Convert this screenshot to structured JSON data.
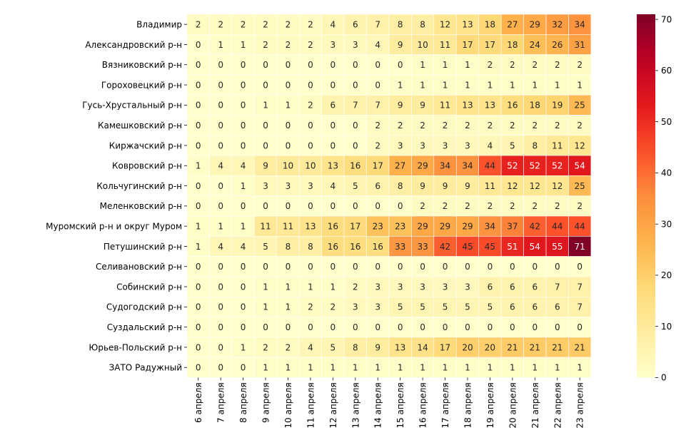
{
  "chart_data": {
    "type": "heatmap",
    "title": "",
    "xlabel": "",
    "ylabel": "",
    "x": [
      "6 апреля",
      "7 апреля",
      "8 апреля",
      "9 апреля",
      "10 апреля",
      "11 апреля",
      "12 апреля",
      "13 апреля",
      "14 апреля",
      "15 апреля",
      "16 апреля",
      "17 апреля",
      "18 апреля",
      "19 апреля",
      "20 апреля",
      "21 апреля",
      "22 апреля",
      "23 апреля"
    ],
    "y": [
      "Владимир",
      "Александровский р-н",
      "Вязниковский р-н",
      "Гороховецкий р-н",
      "Гусь-Хрустальный р-н",
      "Камешковский р-н",
      "Киржачский р-н",
      "Ковровский р-н",
      "Кольчугинский р-н",
      "Меленковский р-н",
      "Муромский р-н и округ Муром",
      "Петушинский р-н",
      "Селивановский р-н",
      "Собинский р-н",
      "Судогодский р-н",
      "Суздальский р-н",
      "Юрьев-Польский р-н",
      "ЗАТО Радужный"
    ],
    "values": [
      [
        2,
        2,
        2,
        2,
        2,
        2,
        4,
        6,
        7,
        8,
        8,
        12,
        13,
        18,
        27,
        29,
        32,
        34
      ],
      [
        0,
        1,
        1,
        2,
        2,
        2,
        3,
        3,
        4,
        9,
        10,
        11,
        17,
        17,
        18,
        24,
        26,
        31
      ],
      [
        0,
        0,
        0,
        0,
        0,
        0,
        0,
        0,
        0,
        0,
        1,
        1,
        1,
        2,
        2,
        2,
        2,
        2
      ],
      [
        0,
        0,
        0,
        0,
        0,
        0,
        0,
        0,
        0,
        1,
        1,
        1,
        1,
        1,
        1,
        1,
        1,
        1
      ],
      [
        0,
        0,
        0,
        1,
        1,
        2,
        6,
        7,
        7,
        9,
        9,
        11,
        13,
        13,
        16,
        18,
        19,
        25
      ],
      [
        0,
        0,
        0,
        0,
        0,
        0,
        0,
        0,
        2,
        2,
        2,
        2,
        2,
        2,
        2,
        2,
        2,
        2
      ],
      [
        0,
        0,
        0,
        0,
        0,
        0,
        0,
        0,
        2,
        3,
        3,
        3,
        3,
        4,
        5,
        8,
        11,
        12
      ],
      [
        1,
        4,
        4,
        9,
        10,
        10,
        13,
        16,
        17,
        27,
        29,
        34,
        34,
        44,
        52,
        52,
        52,
        54
      ],
      [
        0,
        0,
        1,
        3,
        3,
        3,
        4,
        5,
        6,
        8,
        9,
        9,
        9,
        11,
        12,
        12,
        12,
        25
      ],
      [
        0,
        0,
        0,
        0,
        0,
        0,
        0,
        0,
        0,
        0,
        2,
        2,
        2,
        2,
        2,
        2,
        2,
        2
      ],
      [
        1,
        1,
        1,
        11,
        11,
        13,
        16,
        17,
        23,
        23,
        29,
        29,
        29,
        34,
        37,
        42,
        44,
        44
      ],
      [
        1,
        4,
        4,
        5,
        8,
        8,
        16,
        16,
        16,
        33,
        33,
        42,
        45,
        45,
        51,
        54,
        55,
        71
      ],
      [
        0,
        0,
        0,
        0,
        0,
        0,
        0,
        0,
        0,
        0,
        0,
        0,
        0,
        0,
        0,
        0,
        0,
        0
      ],
      [
        0,
        0,
        0,
        1,
        1,
        1,
        1,
        2,
        3,
        3,
        3,
        3,
        3,
        6,
        6,
        6,
        7,
        7
      ],
      [
        0,
        0,
        0,
        1,
        1,
        2,
        2,
        3,
        3,
        5,
        5,
        5,
        5,
        5,
        6,
        6,
        6,
        7
      ],
      [
        0,
        0,
        0,
        0,
        0,
        0,
        0,
        0,
        0,
        0,
        0,
        0,
        0,
        0,
        0,
        0,
        0,
        0
      ],
      [
        0,
        0,
        1,
        2,
        2,
        4,
        5,
        8,
        9,
        13,
        14,
        17,
        20,
        20,
        21,
        21,
        21,
        21
      ],
      [
        0,
        0,
        0,
        1,
        1,
        1,
        1,
        1,
        1,
        1,
        1,
        1,
        1,
        1,
        1,
        1,
        1,
        1
      ]
    ],
    "colormap": "YlOrRd",
    "vmin": 0,
    "vmax": 71,
    "colorbar_ticks": [
      0,
      10,
      20,
      30,
      40,
      50,
      60,
      70
    ],
    "annotated": true,
    "grid_line_color": "#ffffff"
  }
}
